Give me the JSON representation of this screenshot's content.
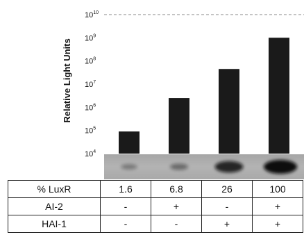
{
  "chart_data": {
    "type": "bar",
    "scale": "log",
    "ylabel": "Relative Light Units",
    "ylim": [
      10000,
      10000000000
    ],
    "yticks": [
      {
        "base": "10",
        "exp": "4",
        "value": 10000
      },
      {
        "base": "10",
        "exp": "5",
        "value": 100000
      },
      {
        "base": "10",
        "exp": "6",
        "value": 1000000
      },
      {
        "base": "10",
        "exp": "7",
        "value": 10000000
      },
      {
        "base": "10",
        "exp": "8",
        "value": 100000000
      },
      {
        "base": "10",
        "exp": "9",
        "value": 1000000000
      },
      {
        "base": "10",
        "exp": "10",
        "value": 10000000000
      }
    ],
    "categories": [
      "1.6",
      "6.8",
      "26",
      "100"
    ],
    "values": [
      90000,
      2500000,
      45000000,
      1000000000
    ],
    "reference_line": {
      "value": 10000000000,
      "style": "dashed"
    },
    "bar_color": "#1a1a1a",
    "gel_band_intensity": [
      0.12,
      0.22,
      0.75,
      1.0
    ]
  },
  "table": {
    "rows": [
      {
        "label": "% LuxR",
        "cells": [
          "1.6",
          "6.8",
          "26",
          "100"
        ]
      },
      {
        "label": "AI-2",
        "cells": [
          "-",
          "+",
          "-",
          "+"
        ]
      },
      {
        "label": "HAI-1",
        "cells": [
          "-",
          "-",
          "+",
          "+"
        ]
      }
    ]
  }
}
